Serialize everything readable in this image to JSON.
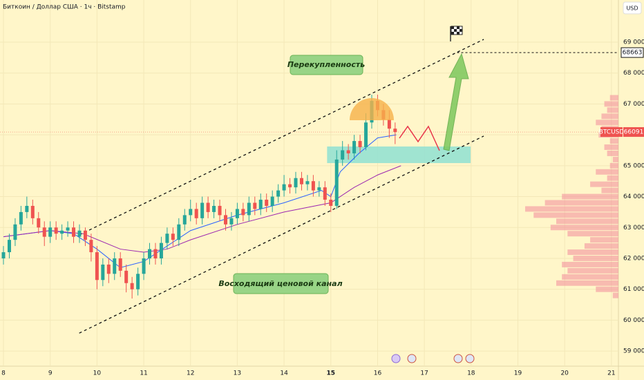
{
  "chart_data": {
    "type": "candlestick",
    "title": "Биткоин / Доллар США · 1ч · Bitstamp",
    "currency": "USD",
    "x": [
      8,
      8.125,
      8.25,
      8.375,
      8.5,
      8.625,
      8.75,
      8.875,
      9,
      9.125,
      9.25,
      9.375,
      9.5,
      9.625,
      9.75,
      9.875,
      10,
      10.125,
      10.25,
      10.375,
      10.5,
      10.625,
      10.75,
      10.875,
      11,
      11.125,
      11.25,
      11.375,
      11.5,
      11.625,
      11.75,
      11.875,
      12,
      12.125,
      12.25,
      12.375,
      12.5,
      12.625,
      12.75,
      12.875,
      13,
      13.125,
      13.25,
      13.375,
      13.5,
      13.625,
      13.75,
      13.875,
      14,
      14.125,
      14.25,
      14.375,
      14.5,
      14.625,
      14.75,
      14.875,
      15,
      15.125,
      15.25,
      15.375,
      15.5,
      15.625,
      15.75,
      15.875,
      16,
      16.125,
      16.25,
      16.375
    ],
    "open": [
      62000,
      62200,
      62600,
      63100,
      63500,
      63700,
      63300,
      63000,
      62700,
      63000,
      62800,
      62900,
      63000,
      62700,
      62900,
      62600,
      62200,
      61300,
      61800,
      61500,
      62000,
      61600,
      61200,
      61000,
      61500,
      62000,
      62300,
      62000,
      62500,
      62800,
      62600,
      63100,
      63400,
      63600,
      63300,
      63800,
      63500,
      63700,
      63400,
      63100,
      63300,
      63600,
      63400,
      63800,
      63600,
      63900,
      63700,
      64000,
      64200,
      64400,
      64300,
      64600,
      64400,
      64500,
      64200,
      64300,
      63900,
      63700,
      65200,
      65500,
      65400,
      65800,
      65600,
      66400,
      67100,
      66800,
      66500,
      66200
    ],
    "high": [
      62400,
      62800,
      63300,
      63700,
      64000,
      63900,
      63500,
      63200,
      63200,
      63200,
      63100,
      63200,
      63200,
      63100,
      63000,
      62800,
      62400,
      62000,
      62000,
      62200,
      62200,
      61800,
      61400,
      61700,
      62200,
      62500,
      62500,
      62700,
      63000,
      63000,
      63300,
      63600,
      63900,
      63800,
      64000,
      64000,
      63900,
      63900,
      63600,
      63500,
      63800,
      63800,
      64000,
      64000,
      64100,
      64100,
      64200,
      64400,
      64700,
      64600,
      64800,
      64800,
      64700,
      64700,
      64500,
      64500,
      64100,
      65500,
      65800,
      65700,
      66000,
      66000,
      66700,
      67300,
      67300,
      67000,
      66800,
      66400
    ],
    "low": [
      61800,
      62000,
      62400,
      62900,
      63300,
      63100,
      62800,
      62400,
      62500,
      62600,
      62600,
      62700,
      62500,
      62500,
      62400,
      61900,
      61000,
      61100,
      61200,
      61300,
      61400,
      60900,
      60700,
      60800,
      61300,
      61800,
      61800,
      61800,
      62300,
      62400,
      62400,
      62900,
      63200,
      63100,
      63100,
      63300,
      63300,
      63200,
      62900,
      62900,
      63100,
      63200,
      63200,
      63400,
      63400,
      63500,
      63500,
      63800,
      64000,
      64100,
      64100,
      64200,
      64200,
      64000,
      64000,
      63700,
      63500,
      63600,
      65000,
      65200,
      65200,
      65400,
      65500,
      66200,
      66600,
      66300,
      65900,
      65700
    ],
    "close": [
      62200,
      62600,
      63100,
      63500,
      63700,
      63300,
      63000,
      62700,
      63000,
      62800,
      62900,
      63000,
      62700,
      62900,
      62600,
      62200,
      61300,
      61800,
      61500,
      62000,
      61600,
      61200,
      61000,
      61500,
      62000,
      62300,
      62000,
      62500,
      62800,
      62600,
      63100,
      63400,
      63600,
      63300,
      63800,
      63500,
      63700,
      63400,
      63100,
      63300,
      63600,
      63400,
      63800,
      63600,
      63900,
      63700,
      64000,
      64200,
      64400,
      64300,
      64600,
      64400,
      64500,
      64200,
      64300,
      63900,
      63700,
      65200,
      65500,
      65400,
      65800,
      65600,
      66400,
      67100,
      66800,
      66500,
      66200,
      66091
    ],
    "up_color": "#26a69a",
    "down_color": "#ef5350",
    "moving_averages": [
      {
        "color": "#2962ff",
        "x": [
          8,
          9,
          9.5,
          10,
          10.5,
          11,
          11.5,
          12,
          13,
          14,
          14.8,
          15,
          15.2,
          15.6,
          16,
          16.4
        ],
        "values": [
          62700,
          62900,
          62800,
          62300,
          61700,
          61900,
          62400,
          62900,
          63400,
          63800,
          64200,
          64000,
          64800,
          65400,
          65900,
          66000
        ]
      },
      {
        "color": "#9c27b0",
        "x": [
          8,
          9,
          9.7,
          10.5,
          11,
          11.5,
          12,
          13,
          14,
          15,
          15.5,
          16,
          16.5
        ],
        "values": [
          62700,
          62900,
          62800,
          62300,
          62200,
          62300,
          62600,
          63100,
          63500,
          63800,
          64300,
          64700,
          65000
        ]
      }
    ],
    "channel": {
      "upper": {
        "x": [
          9.62,
          18.27
        ],
        "values": [
          62760,
          69090
        ]
      },
      "lower": {
        "x": [
          9.62,
          18.27
        ],
        "values": [
          59580,
          65960
        ]
      }
    },
    "zone": {
      "x": [
        14.92,
        17.99
      ],
      "values": [
        65085,
        65622
      ]
    },
    "annotations": [
      "Перекупленность",
      "Восходящий ценовой канал"
    ],
    "symbol": "BTCUSD",
    "last_price": 66091,
    "target": {
      "x": 17.7,
      "value": 68663
    },
    "volume_profile": {
      "color": "#f28b9a",
      "prices": [
        60800,
        61000,
        61200,
        61400,
        61600,
        61800,
        62000,
        62200,
        62400,
        62600,
        62800,
        63000,
        63200,
        63400,
        63600,
        63800,
        64000,
        64200,
        64400,
        64600,
        64800,
        65000,
        65200,
        65400,
        65600,
        65800,
        66000,
        66200,
        66400,
        66600,
        66800,
        67000,
        67200
      ],
      "values": [
        10,
        40,
        110,
        100,
        90,
        100,
        80,
        90,
        60,
        50,
        90,
        120,
        110,
        150,
        165,
        130,
        100,
        30,
        50,
        20,
        40,
        15,
        10,
        20,
        25,
        15,
        35,
        30,
        40,
        30,
        20,
        25,
        15
      ]
    },
    "xlim": [
      7.926,
      21.15
    ],
    "ylim": [
      58510,
      70365
    ],
    "xticks": [
      8,
      9,
      10,
      11,
      12,
      13,
      14,
      15,
      16,
      17,
      18,
      19,
      20,
      21
    ],
    "bold_xtick": 15,
    "yticks": [
      {
        "value": 59000,
        "label": "59 000"
      },
      {
        "value": 60000,
        "label": "60 000"
      },
      {
        "value": 61000,
        "label": "61 000"
      },
      {
        "value": 62000,
        "label": "62 000"
      },
      {
        "value": 63000,
        "label": "63 000"
      },
      {
        "value": 64000,
        "label": "64 000"
      },
      {
        "value": 65000,
        "label": "65 000"
      },
      {
        "value": 66000,
        "label": "66 000"
      },
      {
        "value": 67000,
        "label": "67 000"
      },
      {
        "value": 68000,
        "label": "68 000"
      },
      {
        "value": 69000,
        "label": "69 000"
      }
    ]
  }
}
